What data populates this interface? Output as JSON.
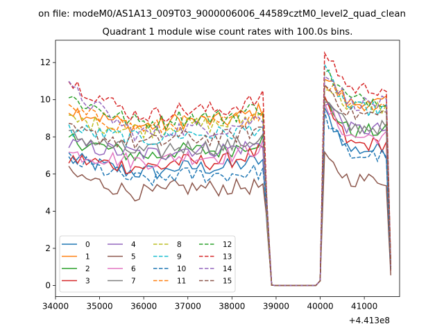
{
  "chart_data": {
    "type": "line",
    "suptitle": "on file: modeM0/AS1A13_009T03_9000006006_44589cztM0_level2_quad_clean",
    "title": "Quadrant 1 module wise count rates with 100.0s bins.",
    "xlabel": "",
    "ylabel": "",
    "x_offset_label": "+4.413e8",
    "xlim": [
      34000,
      41800
    ],
    "ylim": [
      -0.6,
      13.2
    ],
    "xticks": [
      34000,
      35000,
      36000,
      37000,
      38000,
      39000,
      40000,
      41000
    ],
    "xtick_labels": [
      "34000",
      "35000",
      "36000",
      "37000",
      "38000",
      "39000",
      "40000",
      "41000"
    ],
    "yticks": [
      0,
      2,
      4,
      6,
      8,
      10,
      12
    ],
    "ytick_labels": [
      "0",
      "2",
      "4",
      "6",
      "8",
      "10",
      "12"
    ],
    "grid": false,
    "legend_position": "lower-left",
    "legend_columns": 4,
    "segments": [
      {
        "x_start": 34300,
        "x_end": 38700,
        "n": 45
      },
      {
        "x_start": 38800,
        "x_end": 38900,
        "n": 2
      },
      {
        "x_start": 39000,
        "x_end": 39900,
        "n": 10
      },
      {
        "x_start": 40000,
        "x_end": 40000,
        "n": 1
      },
      {
        "x_start": 40100,
        "x_end": 41500,
        "n": 15
      },
      {
        "x_start": 41600,
        "x_end": 41600,
        "n": 1
      }
    ],
    "series": [
      {
        "name": "0",
        "color": "#1f77b4",
        "dash": "solid",
        "level1": 6.1,
        "level2": 7.3,
        "start1": 6.8,
        "end1": 6.5,
        "start2": 9.3,
        "endval": 0.9
      },
      {
        "name": "1",
        "color": "#ff7f0e",
        "dash": "solid",
        "level1": 8.6,
        "level2": 9.8,
        "start1": 9.5,
        "end1": 9.2,
        "start2": 11.3,
        "endval": 1.0
      },
      {
        "name": "2",
        "color": "#2ca02c",
        "dash": "solid",
        "level1": 7.0,
        "level2": 8.3,
        "start1": 7.9,
        "end1": 7.6,
        "start2": 9.9,
        "endval": 0.9
      },
      {
        "name": "3",
        "color": "#d62728",
        "dash": "solid",
        "level1": 6.4,
        "level2": 7.6,
        "start1": 6.8,
        "end1": 7.0,
        "start2": 9.8,
        "endval": 0.8
      },
      {
        "name": "4",
        "color": "#9467bd",
        "dash": "solid",
        "level1": 7.1,
        "level2": 8.4,
        "start1": 7.6,
        "end1": 7.3,
        "start2": 10.0,
        "endval": 0.9
      },
      {
        "name": "5",
        "color": "#8c564b",
        "dash": "solid",
        "level1": 5.0,
        "level2": 5.7,
        "start1": 6.0,
        "end1": 5.1,
        "start2": 6.8,
        "endval": 0.55
      },
      {
        "name": "6",
        "color": "#e377c2",
        "dash": "solid",
        "level1": 6.7,
        "level2": 8.0,
        "start1": 7.1,
        "end1": 7.2,
        "start2": 9.6,
        "endval": 0.9
      },
      {
        "name": "7",
        "color": "#7f7f7f",
        "dash": "solid",
        "level1": 7.2,
        "level2": 8.5,
        "start1": 8.1,
        "end1": 7.7,
        "start2": 9.9,
        "endval": 1.0
      },
      {
        "name": "8",
        "color": "#bcbd22",
        "dash": "dashed",
        "level1": 8.4,
        "level2": 9.6,
        "start1": 8.9,
        "end1": 9.0,
        "start2": 10.9,
        "endval": 1.0
      },
      {
        "name": "9",
        "color": "#17becf",
        "dash": "dashed",
        "level1": 7.9,
        "level2": 9.5,
        "start1": 8.4,
        "end1": 8.3,
        "start2": 11.5,
        "endval": 1.0
      },
      {
        "name": "10",
        "color": "#1f77b4",
        "dash": "dashed",
        "level1": 5.7,
        "level2": 7.0,
        "start1": 6.8,
        "end1": 5.9,
        "start2": 9.1,
        "endval": 0.8
      },
      {
        "name": "11",
        "color": "#ff7f0e",
        "dash": "dashed",
        "level1": 8.5,
        "level2": 9.8,
        "start1": 9.4,
        "end1": 9.1,
        "start2": 11.0,
        "endval": 1.0
      },
      {
        "name": "12",
        "color": "#2ca02c",
        "dash": "dashed",
        "level1": 8.8,
        "level2": 10.0,
        "start1": 10.1,
        "end1": 9.4,
        "start2": 11.6,
        "endval": 1.0
      },
      {
        "name": "13",
        "color": "#d62728",
        "dash": "dashed",
        "level1": 9.2,
        "level2": 10.6,
        "start1": 11.0,
        "end1": 9.8,
        "start2": 12.6,
        "endval": 1.1
      },
      {
        "name": "14",
        "color": "#9467bd",
        "dash": "dashed",
        "level1": 8.2,
        "level2": 9.8,
        "start1": 10.6,
        "end1": 8.8,
        "start2": 11.6,
        "endval": 1.0
      },
      {
        "name": "15",
        "color": "#8c564b",
        "dash": "dashed",
        "level1": 7.7,
        "level2": 9.2,
        "start1": 8.3,
        "end1": 8.2,
        "start2": 10.9,
        "endval": 0.9
      }
    ]
  }
}
